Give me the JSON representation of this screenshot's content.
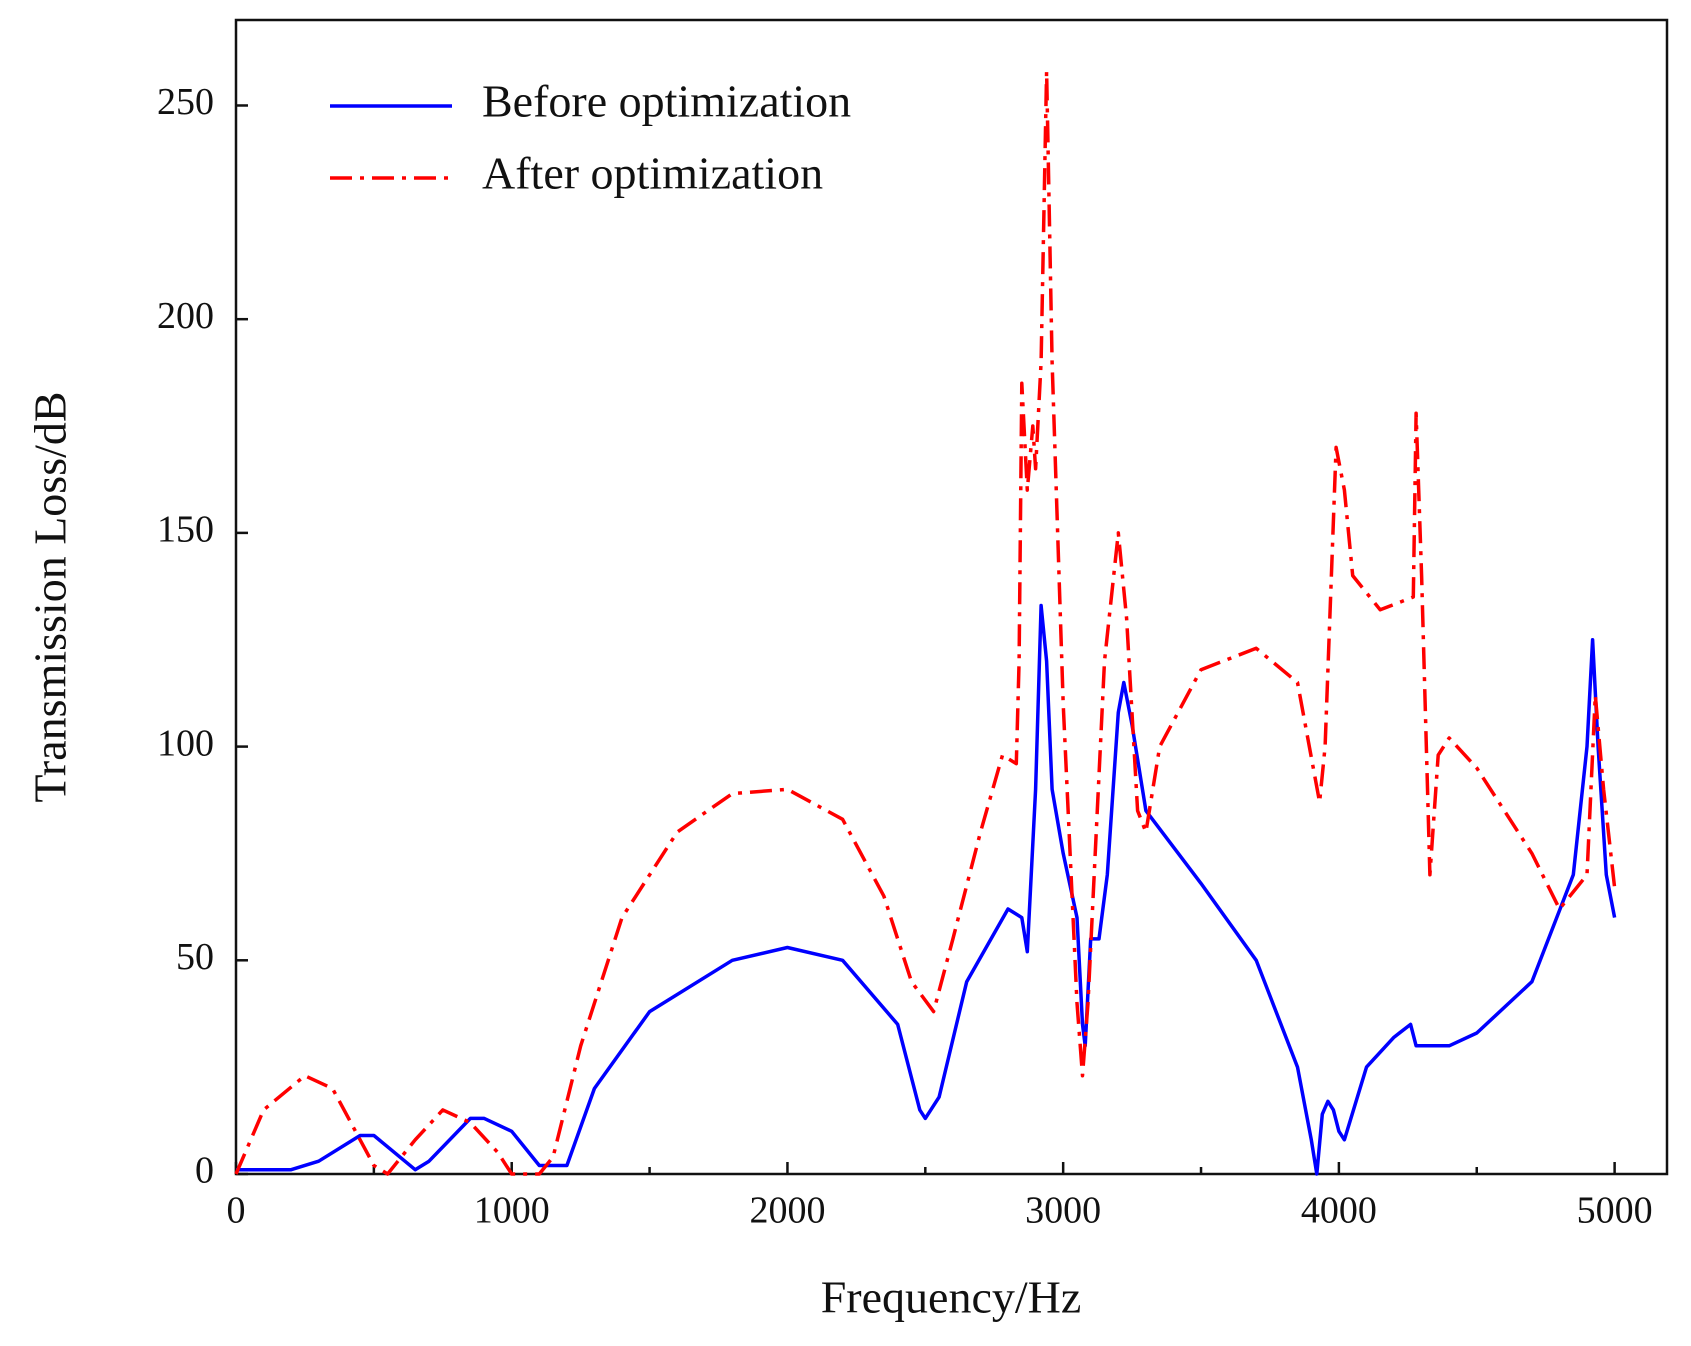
{
  "chart_data": {
    "type": "line",
    "xlabel": "Frequency/Hz",
    "ylabel": "Transmission Loss/dB",
    "xlim": [
      0,
      5190
    ],
    "ylim": [
      0,
      270
    ],
    "xticks": [
      0,
      1000,
      2000,
      3000,
      4000,
      5000
    ],
    "xminorticks": [
      500,
      1500,
      2500,
      3500,
      4500
    ],
    "yticks": [
      0,
      50,
      100,
      150,
      200,
      250
    ],
    "legend": "upper left",
    "series": [
      {
        "name": "Before optimization",
        "color": "#0000ff",
        "dash": "solid",
        "x": [
          0,
          50,
          200,
          300,
          450,
          500,
          650,
          700,
          850,
          900,
          1000,
          1100,
          1150,
          1200,
          1300,
          1500,
          1800,
          2000,
          2200,
          2400,
          2480,
          2500,
          2550,
          2650,
          2800,
          2850,
          2870,
          2900,
          2920,
          2940,
          2960,
          3000,
          3050,
          3070,
          3080,
          3100,
          3130,
          3160,
          3200,
          3220,
          3250,
          3300,
          3500,
          3700,
          3850,
          3900,
          3920,
          3940,
          3960,
          3980,
          4000,
          4020,
          4100,
          4200,
          4260,
          4280,
          4320,
          4400,
          4500,
          4700,
          4850,
          4900,
          4920,
          4940,
          4970,
          5000
        ],
        "values": [
          1,
          1,
          1,
          3,
          9,
          9,
          1,
          3,
          13,
          13,
          10,
          2,
          2,
          2,
          20,
          38,
          50,
          53,
          50,
          35,
          15,
          13,
          18,
          45,
          62,
          60,
          52,
          90,
          133,
          120,
          90,
          75,
          60,
          35,
          30,
          55,
          55,
          70,
          108,
          115,
          105,
          85,
          68,
          50,
          25,
          8,
          0,
          14,
          17,
          15,
          10,
          8,
          25,
          32,
          35,
          30,
          30,
          30,
          33,
          45,
          70,
          100,
          125,
          100,
          70,
          60
        ]
      },
      {
        "name": "After optimization",
        "color": "#ff0000",
        "dash": "dashdot",
        "x": [
          0,
          100,
          250,
          350,
          450,
          500,
          550,
          650,
          750,
          850,
          950,
          1000,
          1100,
          1150,
          1250,
          1400,
          1600,
          1800,
          2000,
          2200,
          2350,
          2450,
          2530,
          2600,
          2700,
          2780,
          2830,
          2840,
          2850,
          2870,
          2890,
          2900,
          2920,
          2940,
          2960,
          3000,
          3050,
          3070,
          3090,
          3150,
          3200,
          3230,
          3270,
          3300,
          3350,
          3500,
          3700,
          3850,
          3930,
          3950,
          3990,
          4020,
          4050,
          4150,
          4270,
          4280,
          4300,
          4330,
          4360,
          4400,
          4500,
          4700,
          4800,
          4900,
          4930,
          4960,
          5000
        ],
        "values": [
          0,
          15,
          23,
          20,
          8,
          2,
          0,
          8,
          15,
          12,
          5,
          0,
          0,
          4,
          30,
          60,
          80,
          89,
          90,
          83,
          65,
          45,
          38,
          55,
          80,
          98,
          96,
          120,
          185,
          160,
          175,
          165,
          190,
          258,
          190,
          110,
          40,
          23,
          40,
          120,
          150,
          130,
          85,
          80,
          100,
          118,
          123,
          115,
          87,
          100,
          170,
          160,
          140,
          132,
          135,
          178,
          140,
          70,
          98,
          102,
          95,
          75,
          62,
          70,
          112,
          90,
          67
        ]
      }
    ]
  }
}
